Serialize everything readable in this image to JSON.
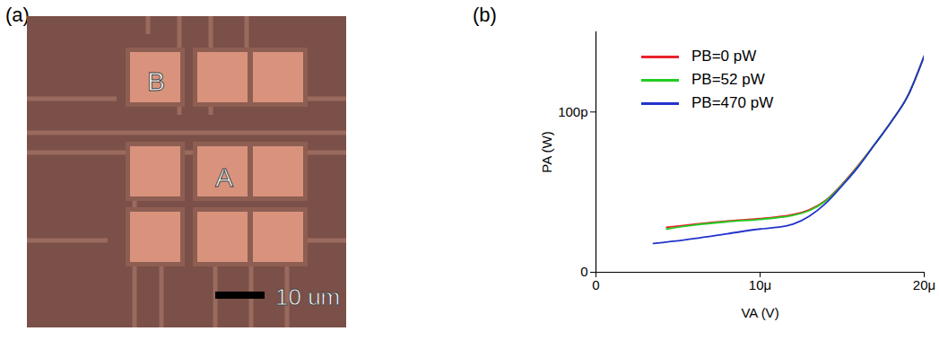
{
  "image_panel": {
    "label": "(a)",
    "pad_labels": [
      "B",
      "A"
    ],
    "scale_bar": "10 um"
  },
  "chart_data": {
    "type": "line",
    "title": "(b)",
    "x_label": "VA (V)",
    "y_label": "PA (W)",
    "xlim": [
      0,
      2e-05
    ],
    "ylim": [
      0,
      1.5e-10
    ],
    "xticks": [
      0,
      {
        "value": 1e-05,
        "label": "10μ"
      },
      {
        "value": 2e-05,
        "label": "20μ"
      }
    ],
    "yticks": [
      0,
      {
        "value": 1e-10,
        "label": "100p"
      }
    ],
    "grid": false,
    "legend": "top-left",
    "series": [
      {
        "name": "PB=0 pW",
        "color": "#e8232a",
        "x": [
          4.3e-06,
          6e-06,
          8e-06,
          1e-05,
          1.1e-05,
          1.2e-05,
          1.3e-05,
          1.4e-05,
          1.5e-05,
          1.6e-05,
          1.7e-05,
          1.8e-05,
          1.9e-05,
          2e-05
        ],
        "values": [
          2.8e-11,
          3e-11,
          3.2e-11,
          3.35e-11,
          3.45e-11,
          3.6e-11,
          3.9e-11,
          4.5e-11,
          5.5e-11,
          6.7e-11,
          8e-11,
          9.4e-11,
          1.1e-10,
          1.35e-10
        ]
      },
      {
        "name": "PB=52 pW",
        "color": "#22cc22",
        "x": [
          4.3e-06,
          6e-06,
          8e-06,
          1e-05,
          1.1e-05,
          1.2e-05,
          1.3e-05,
          1.4e-05,
          1.5e-05,
          1.6e-05,
          1.7e-05,
          1.8e-05,
          1.9e-05,
          2e-05
        ],
        "values": [
          2.7e-11,
          2.95e-11,
          3.15e-11,
          3.3e-11,
          3.4e-11,
          3.55e-11,
          3.85e-11,
          4.45e-11,
          5.45e-11,
          6.65e-11,
          8e-11,
          9.4e-11,
          1.1e-10,
          1.35e-10
        ]
      },
      {
        "name": "PB=470 pW",
        "color": "#2233cc",
        "x": [
          3.5e-06,
          6e-06,
          8e-06,
          1e-05,
          1.1e-05,
          1.2e-05,
          1.3e-05,
          1.4e-05,
          1.5e-05,
          1.6e-05,
          1.7e-05,
          1.8e-05,
          1.9e-05,
          2e-05
        ],
        "values": [
          1.8e-11,
          2.1e-11,
          2.4e-11,
          2.7e-11,
          2.8e-11,
          3e-11,
          3.5e-11,
          4.3e-11,
          5.4e-11,
          6.6e-11,
          8e-11,
          9.4e-11,
          1.1e-10,
          1.35e-10
        ]
      }
    ]
  }
}
